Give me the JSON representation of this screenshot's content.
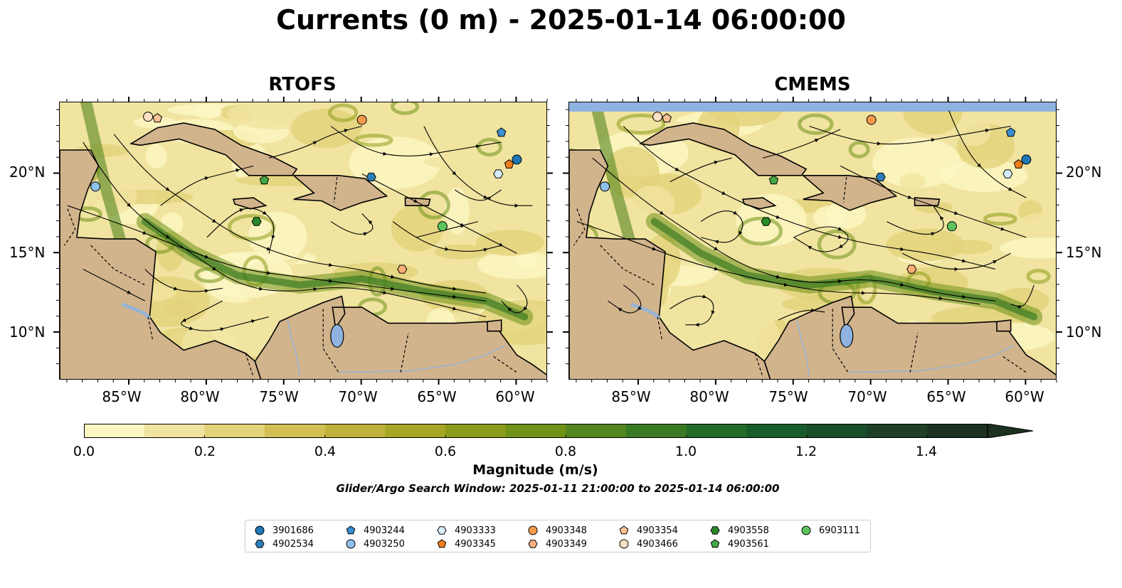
{
  "title": "Currents (0 m) - 2025-01-14 06:00:00",
  "panels": [
    {
      "name": "RTOFS"
    },
    {
      "name": "CMEMS"
    }
  ],
  "map": {
    "lon_range": [
      -89.5,
      -58
    ],
    "lat_range": [
      7,
      24.5
    ],
    "lon_ticks": [
      "85°W",
      "80°W",
      "75°W",
      "70°W",
      "65°W",
      "60°W"
    ],
    "lat_ticks": [
      "20°N",
      "15°N",
      "10°N"
    ],
    "land_color": "#d2b48c",
    "water_feature_color": "#8fb3e0"
  },
  "colorbar": {
    "label": "Magnitude (m/s)",
    "ticks": [
      "0.0",
      "0.2",
      "0.4",
      "0.6",
      "0.8",
      "1.0",
      "1.2",
      "1.4"
    ],
    "range": [
      0,
      1.5
    ],
    "extend": "max",
    "colors": [
      "#fdf6c3",
      "#f1e4a0",
      "#e2d27a",
      "#d2c055",
      "#bfb23a",
      "#a6a524",
      "#8c9c1a",
      "#6f9219",
      "#53861e",
      "#3a7a24",
      "#236c2a",
      "#195c2b",
      "#1a4d2a",
      "#1c3f25",
      "#1c3120"
    ]
  },
  "search_window": "Glider/Argo Search Window: 2025-01-11 21:00:00 to 2025-01-14 06:00:00",
  "floats": [
    {
      "id": "3901686",
      "marker": "circle",
      "color": "#1f77b4",
      "lon": -60.0,
      "lat": 20.9
    },
    {
      "id": "4902534",
      "marker": "hexagon",
      "color": "#2c7fb8",
      "lon": -69.4,
      "lat": 19.8
    },
    {
      "id": "4903244",
      "marker": "pentagon",
      "color": "#3a8fd0",
      "lon": -61.0,
      "lat": 22.6
    },
    {
      "id": "4903250",
      "marker": "circle",
      "color": "#8ec0ec",
      "lon": -87.2,
      "lat": 19.2
    },
    {
      "id": "4903333",
      "marker": "hexagon",
      "color": "#d6ecfb",
      "lon": -61.2,
      "lat": 20.0
    },
    {
      "id": "4903345",
      "marker": "pentagon",
      "color": "#f07f1c",
      "lon": -60.5,
      "lat": 20.6
    },
    {
      "id": "4903348",
      "marker": "circle",
      "color": "#f59a4a",
      "lon": -70.0,
      "lat": 23.4
    },
    {
      "id": "4903349",
      "marker": "hexagon",
      "color": "#fbb07a",
      "lon": -67.4,
      "lat": 14.0
    },
    {
      "id": "4903354",
      "marker": "pentagon",
      "color": "#fbc294",
      "lon": -83.2,
      "lat": 23.5
    },
    {
      "id": "4903466",
      "marker": "circle",
      "color": "#fde0c4",
      "lon": -83.8,
      "lat": 23.6
    },
    {
      "id": "4903558",
      "marker": "hexagon",
      "color": "#2a8a2a",
      "lon": -76.8,
      "lat": 17.0
    },
    {
      "id": "4903561",
      "marker": "pentagon",
      "color": "#43a843",
      "lon": -76.3,
      "lat": 19.6
    },
    {
      "id": "6903111",
      "marker": "circle",
      "color": "#5cc65c",
      "lon": -64.8,
      "lat": 16.7
    }
  ]
}
